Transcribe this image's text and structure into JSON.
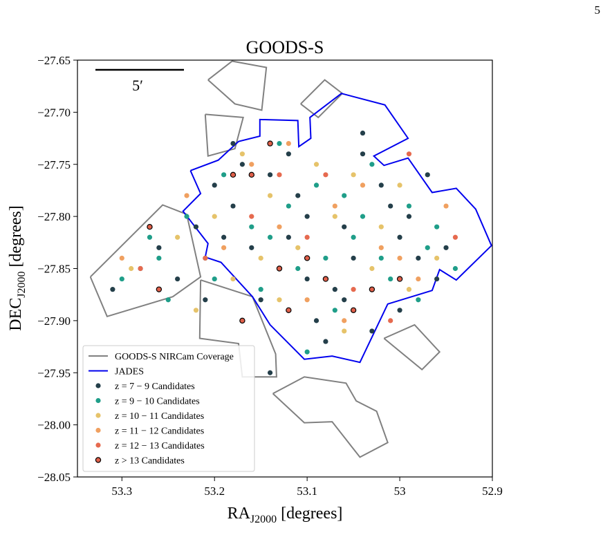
{
  "page_number": "5",
  "chart_data": {
    "type": "scatter",
    "title": "GOODS-S",
    "xlabel": {
      "main": "RA",
      "sub": "J2000",
      "unit": "[degrees]"
    },
    "ylabel": {
      "main": "DEC",
      "sub": "J2000",
      "unit": "[degrees]"
    },
    "annotation": "5′",
    "xlim": [
      53.348,
      52.9
    ],
    "xticks": [
      53.3,
      53.2,
      53.1,
      53.0,
      52.9
    ],
    "ylim": [
      -27.65,
      -28.05
    ],
    "yticks": [
      {
        "value": -27.65,
        "label": "−27.65"
      },
      {
        "value": -27.7,
        "label": "−27.70"
      },
      {
        "value": -27.75,
        "label": "−27.75"
      },
      {
        "value": -27.8,
        "label": "−27.80"
      },
      {
        "value": -27.85,
        "label": "−27.85"
      },
      {
        "value": -27.9,
        "label": "−27.90"
      },
      {
        "value": -27.95,
        "label": "−27.95"
      },
      {
        "value": -28.0,
        "label": "−28.00"
      },
      {
        "value": -28.05,
        "label": "−28.05"
      }
    ],
    "legend": "lower left",
    "series": [
      {
        "name": "GOODS-S NIRCam Coverage",
        "kind": "outline",
        "color": "#808080",
        "x": [
          53.334,
          53.256,
          53.23,
          53.215,
          53.245,
          53.316,
          53.334,
          null,
          53.207,
          53.181,
          53.144,
          53.149,
          53.178,
          53.207,
          null,
          53.21,
          53.169,
          53.178,
          53.207,
          53.21,
          null,
          53.215,
          53.216,
          53.174,
          53.17,
          53.133,
          53.134,
          53.159,
          53.215,
          null,
          53.137,
          53.103,
          53.058,
          53.047,
          53.025,
          53.013,
          53.043,
          53.073,
          53.103,
          53.137,
          null,
          53.017,
          52.984,
          52.957,
          52.976,
          53.017,
          null,
          53.107,
          53.081,
          53.062,
          53.088,
          53.107
        ],
        "y": [
          -27.858,
          -27.789,
          -27.798,
          -27.858,
          -27.877,
          -27.896,
          -27.858,
          null,
          -27.669,
          -27.651,
          -27.657,
          -27.698,
          -27.692,
          -27.669,
          null,
          -27.702,
          -27.705,
          -27.735,
          -27.742,
          -27.702,
          null,
          -27.861,
          -27.917,
          -27.922,
          -27.954,
          -27.954,
          -27.932,
          -27.877,
          -27.861,
          null,
          -27.97,
          -27.954,
          -27.96,
          -27.977,
          -27.987,
          -28.017,
          -28.031,
          -27.997,
          -27.998,
          -27.97,
          null,
          -27.917,
          -27.904,
          -27.93,
          -27.947,
          -27.917,
          null,
          -27.692,
          -27.669,
          -27.682,
          -27.705,
          -27.692
        ]
      },
      {
        "name": "JADES",
        "kind": "outline",
        "color": "#0000ee",
        "x": [
          53.226,
          53.196,
          53.174,
          53.151,
          53.151,
          53.11,
          53.109,
          53.096,
          53.097,
          53.063,
          53.016,
          52.991,
          53.028,
          53.017,
          52.991,
          52.965,
          52.939,
          52.918,
          52.901,
          52.939,
          52.957,
          52.965,
          53.013,
          53.043,
          53.073,
          53.103,
          53.14,
          53.159,
          53.193,
          53.21,
          53.207,
          53.234,
          53.215,
          53.226
        ],
        "y": [
          -27.756,
          -27.746,
          -27.728,
          -27.723,
          -27.707,
          -27.708,
          -27.733,
          -27.725,
          -27.705,
          -27.682,
          -27.693,
          -27.725,
          -27.742,
          -27.751,
          -27.744,
          -27.777,
          -27.773,
          -27.793,
          -27.828,
          -27.861,
          -27.851,
          -27.871,
          -27.884,
          -27.94,
          -27.934,
          -27.937,
          -27.904,
          -27.877,
          -27.844,
          -27.839,
          -27.826,
          -27.795,
          -27.778,
          -27.756
        ]
      },
      {
        "name": "z = 7 − 9 Candidates",
        "kind": "points",
        "color": "#243f4a",
        "x": [
          53.31,
          53.28,
          53.26,
          53.22,
          53.2,
          53.18,
          53.16,
          53.14,
          53.12,
          53.1,
          53.08,
          53.06,
          53.04,
          53.02,
          53.0,
          52.98,
          52.96,
          53.17,
          53.13,
          53.09,
          53.05,
          53.01,
          52.97,
          53.19,
          53.15,
          53.11,
          53.07,
          53.03,
          52.99,
          52.95,
          53.24,
          53.21,
          53.12,
          53.08,
          53.04,
          53.1,
          53.06,
          53.14,
          53.0,
          53.18
        ],
        "y": [
          -27.87,
          -27.85,
          -27.83,
          -27.81,
          -27.77,
          -27.79,
          -27.83,
          -27.76,
          -27.74,
          -27.8,
          -27.86,
          -27.88,
          -27.72,
          -27.77,
          -27.82,
          -27.84,
          -27.86,
          -27.75,
          -27.85,
          -27.9,
          -27.84,
          -27.79,
          -27.76,
          -27.82,
          -27.88,
          -27.78,
          -27.87,
          -27.91,
          -27.8,
          -27.83,
          -27.86,
          -27.88,
          -27.82,
          -27.92,
          -27.74,
          -27.86,
          -27.81,
          -27.95,
          -27.89,
          -27.73
        ]
      },
      {
        "name": "z = 9 − 10 Candidates",
        "kind": "points",
        "color": "#1f9e89",
        "x": [
          53.3,
          53.27,
          53.25,
          53.21,
          53.19,
          53.16,
          53.13,
          53.11,
          53.09,
          53.07,
          53.05,
          53.03,
          53.01,
          52.99,
          52.97,
          52.94,
          53.23,
          53.15,
          53.1,
          53.06,
          53.02,
          52.98,
          53.12,
          53.08,
          53.17,
          53.14,
          53.04,
          52.96,
          53.26,
          53.2
        ],
        "y": [
          -27.86,
          -27.82,
          -27.88,
          -27.84,
          -27.76,
          -27.81,
          -27.73,
          -27.85,
          -27.77,
          -27.89,
          -27.82,
          -27.75,
          -27.86,
          -27.79,
          -27.83,
          -27.85,
          -27.8,
          -27.87,
          -27.93,
          -27.78,
          -27.84,
          -27.88,
          -27.79,
          -27.84,
          -27.9,
          -27.82,
          -27.8,
          -27.81,
          -27.84,
          -27.86
        ]
      },
      {
        "name": "z = 10 − 11 Candidates",
        "kind": "points",
        "color": "#e6c36a",
        "x": [
          53.29,
          53.24,
          53.2,
          53.17,
          53.14,
          53.11,
          53.08,
          53.05,
          53.02,
          52.99,
          52.96,
          53.13,
          53.09,
          53.03,
          53.18,
          53.07,
          53.0,
          53.22,
          53.15,
          53.06
        ],
        "y": [
          -27.85,
          -27.82,
          -27.8,
          -27.74,
          -27.78,
          -27.83,
          -27.86,
          -27.76,
          -27.81,
          -27.87,
          -27.84,
          -27.88,
          -27.75,
          -27.85,
          -27.86,
          -27.8,
          -27.77,
          -27.89,
          -27.84,
          -27.91
        ]
      },
      {
        "name": "z = 11 − 12 Candidates",
        "kind": "points",
        "color": "#f0a060",
        "x": [
          53.3,
          53.23,
          53.19,
          53.13,
          53.07,
          53.02,
          52.98,
          52.95,
          53.1,
          53.16,
          53.04,
          53.0,
          53.26,
          53.12,
          53.06
        ],
        "y": [
          -27.84,
          -27.78,
          -27.83,
          -27.81,
          -27.79,
          -27.83,
          -27.86,
          -27.79,
          -27.88,
          -27.75,
          -27.77,
          -27.84,
          -27.87,
          -27.73,
          -27.9
        ]
      },
      {
        "name": "z = 12 − 13 Candidates",
        "kind": "points",
        "color": "#e66a4f",
        "x": [
          53.28,
          53.16,
          53.1,
          53.05,
          52.99,
          53.13,
          53.21,
          52.94,
          53.08,
          53.01
        ],
        "y": [
          -27.85,
          -27.8,
          -27.82,
          -27.87,
          -27.74,
          -27.76,
          -27.84,
          -27.82,
          -27.76,
          -27.9
        ]
      },
      {
        "name": "z > 13 Candidates",
        "kind": "points",
        "color": "#e0604a",
        "edgecolor": "#000000",
        "x": [
          53.27,
          53.26,
          53.18,
          53.14,
          53.13,
          53.1,
          53.08,
          53.05,
          53.03,
          53.0,
          53.12,
          53.17,
          53.16
        ],
        "y": [
          -27.81,
          -27.87,
          -27.76,
          -27.73,
          -27.85,
          -27.84,
          -27.86,
          -27.89,
          -27.87,
          -27.86,
          -27.89,
          -27.9,
          -27.76
        ]
      }
    ]
  }
}
